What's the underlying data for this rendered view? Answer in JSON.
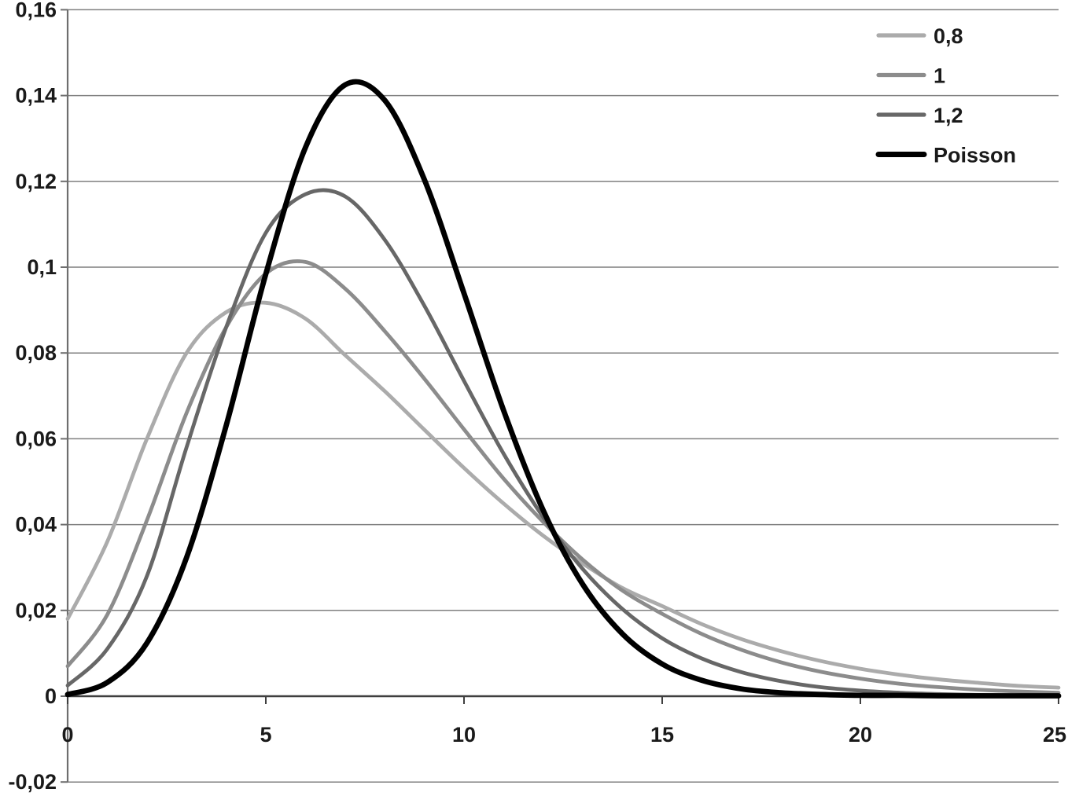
{
  "chart_data": {
    "type": "line",
    "title": "",
    "xlabel": "",
    "ylabel": "",
    "decimal_separator": ",",
    "x": [
      0,
      1,
      2,
      3,
      4,
      5,
      6,
      7,
      8,
      9,
      10,
      11,
      12,
      13,
      14,
      15,
      16,
      17,
      18,
      19,
      20,
      21,
      22,
      23,
      24,
      25
    ],
    "series": [
      {
        "name": "0,8",
        "color": "#ababab",
        "stroke_width": 4.8,
        "values": [
          0.018,
          0.036,
          0.06,
          0.08,
          0.0895,
          0.0917,
          0.088,
          0.0795,
          0.0711,
          0.0621,
          0.0532,
          0.0449,
          0.0374,
          0.0309,
          0.0252,
          0.021,
          0.0168,
          0.0133,
          0.0105,
          0.0082,
          0.0064,
          0.005,
          0.0039,
          0.0031,
          0.0024,
          0.002
        ],
        "peak": {
          "x": 4.8,
          "y": 0.092
        }
      },
      {
        "name": "1",
        "color": "#8c8c8c",
        "stroke_width": 4.8,
        "values": [
          0.007,
          0.019,
          0.041,
          0.066,
          0.086,
          0.0985,
          0.1012,
          0.095,
          0.0851,
          0.074,
          0.0622,
          0.0507,
          0.0406,
          0.0318,
          0.0246,
          0.0192,
          0.0145,
          0.0108,
          0.0079,
          0.0057,
          0.0041,
          0.0029,
          0.0021,
          0.0015,
          0.0011,
          0.0008
        ],
        "peak": {
          "x": 5.7,
          "y": 0.1015
        }
      },
      {
        "name": "1,2",
        "color": "#676767",
        "stroke_width": 4.8,
        "values": [
          0.0025,
          0.011,
          0.028,
          0.058,
          0.086,
          0.108,
          0.117,
          0.1165,
          0.1064,
          0.091,
          0.0735,
          0.0565,
          0.0417,
          0.0296,
          0.0203,
          0.0135,
          0.0088,
          0.0056,
          0.0035,
          0.0021,
          0.0013,
          0.0008,
          0.0005,
          0.0003,
          0.0002,
          0.0002
        ],
        "peak": {
          "x": 6.5,
          "y": 0.1177
        }
      },
      {
        "name": "Poisson",
        "color": "#000000",
        "stroke_width": 6.8,
        "values": [
          0.0004,
          0.0032,
          0.0124,
          0.0323,
          0.0631,
          0.0984,
          0.1279,
          0.1425,
          0.1389,
          0.1204,
          0.0939,
          0.0666,
          0.0433,
          0.026,
          0.0145,
          0.0075,
          0.0037,
          0.0017,
          0.0008,
          0.0004,
          0.0002,
          0.0002,
          0.0001,
          0.0001,
          0.0001,
          0.0001
        ],
        "peak": {
          "x": 7.3,
          "y": 0.144
        }
      }
    ],
    "xlim": [
      0,
      25
    ],
    "ylim": [
      -0.02,
      0.16
    ],
    "x_tick_values": [
      0,
      5,
      10,
      15,
      20,
      25
    ],
    "x_tick_labels": [
      "0",
      "5",
      "10",
      "15",
      "20",
      "25"
    ],
    "y_tick_values": [
      0.16,
      0.14,
      0.12,
      0.1,
      0.08,
      0.06,
      0.04,
      0.02,
      0,
      -0.02
    ],
    "y_tick_labels": [
      "0,16",
      "0,14",
      "0,12",
      "0,1",
      "0,08",
      "0,06",
      "0,04",
      "0,02",
      "0",
      "-0,02"
    ],
    "grid": true,
    "legend_position": "top-right",
    "legend_entries": [
      "0,8",
      "1",
      "1,2",
      "Poisson"
    ]
  },
  "styles": {
    "background": "#ffffff",
    "grid_color": "#7f7f7f",
    "y_axis_color": "#6e6e6e",
    "x_axis_color": "#3f3f3f",
    "text_color": "#1a1a1a"
  }
}
